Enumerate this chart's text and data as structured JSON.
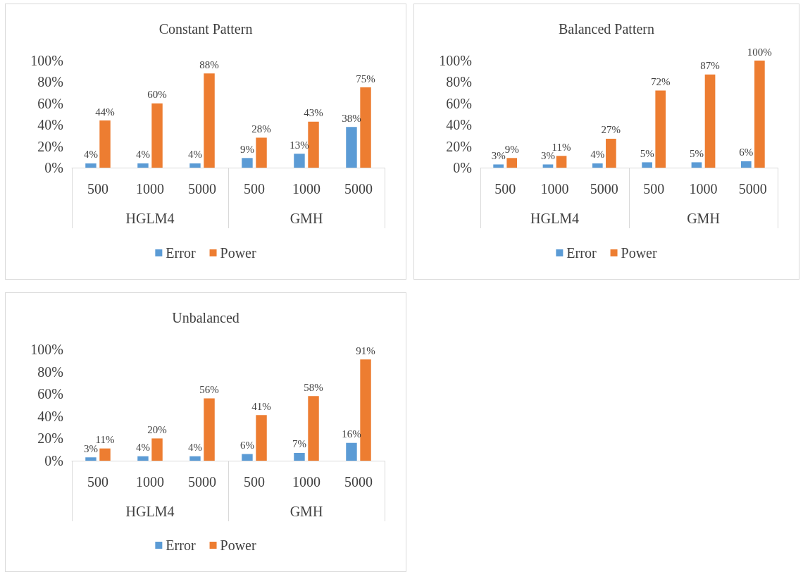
{
  "chart_data": [
    {
      "type": "bar",
      "title": "Constant Pattern",
      "categories": [
        "500",
        "1000",
        "5000",
        "500",
        "1000",
        "5000"
      ],
      "annotations": [
        "HGLM4",
        "GMH"
      ],
      "ylim": [
        0,
        100
      ],
      "yticks": [
        {
          "value": 0,
          "label": "0%"
        },
        {
          "value": 20,
          "label": "20%"
        },
        {
          "value": 40,
          "label": "40%"
        },
        {
          "value": 60,
          "label": "60%"
        },
        {
          "value": 80,
          "label": "80%"
        },
        {
          "value": 100,
          "label": "100%"
        }
      ],
      "grid": false,
      "legend": "bottom",
      "series": [
        {
          "name": "Error",
          "color": "#5b9bd5",
          "values": [
            4,
            4,
            4,
            9,
            13,
            38
          ],
          "value_labels": [
            "4%",
            "4%",
            "4%",
            "9%",
            "13%",
            "38%"
          ]
        },
        {
          "name": "Power",
          "color": "#ed7d31",
          "values": [
            44,
            60,
            88,
            28,
            43,
            75
          ],
          "value_labels": [
            "44%",
            "60%",
            "88%",
            "28%",
            "43%",
            "75%"
          ]
        }
      ]
    },
    {
      "type": "bar",
      "title": "Balanced Pattern",
      "categories": [
        "500",
        "1000",
        "5000",
        "500",
        "1000",
        "5000"
      ],
      "annotations": [
        "HGLM4",
        "GMH"
      ],
      "ylim": [
        0,
        100
      ],
      "yticks": [
        {
          "value": 0,
          "label": "0%"
        },
        {
          "value": 20,
          "label": "20%"
        },
        {
          "value": 40,
          "label": "40%"
        },
        {
          "value": 60,
          "label": "60%"
        },
        {
          "value": 80,
          "label": "80%"
        },
        {
          "value": 100,
          "label": "100%"
        }
      ],
      "grid": false,
      "legend": "bottom",
      "series": [
        {
          "name": "Error",
          "color": "#5b9bd5",
          "values": [
            3,
            3,
            4,
            5,
            5,
            6
          ],
          "value_labels": [
            "3%",
            "3%",
            "4%",
            "5%",
            "5%",
            "6%"
          ]
        },
        {
          "name": "Power",
          "color": "#ed7d31",
          "values": [
            9,
            11,
            27,
            72,
            87,
            100
          ],
          "value_labels": [
            "9%",
            "11%",
            "27%",
            "72%",
            "87%",
            "100%"
          ]
        }
      ]
    },
    {
      "type": "bar",
      "title": "Unbalanced",
      "categories": [
        "500",
        "1000",
        "5000",
        "500",
        "1000",
        "5000"
      ],
      "annotations": [
        "HGLM4",
        "GMH"
      ],
      "ylim": [
        0,
        100
      ],
      "yticks": [
        {
          "value": 0,
          "label": "0%"
        },
        {
          "value": 20,
          "label": "20%"
        },
        {
          "value": 40,
          "label": "40%"
        },
        {
          "value": 60,
          "label": "60%"
        },
        {
          "value": 80,
          "label": "80%"
        },
        {
          "value": 100,
          "label": "100%"
        }
      ],
      "grid": false,
      "legend": "bottom",
      "series": [
        {
          "name": "Error",
          "color": "#5b9bd5",
          "values": [
            3,
            4,
            4,
            6,
            7,
            16
          ],
          "value_labels": [
            "3%",
            "4%",
            "4%",
            "6%",
            "7%",
            "16%"
          ]
        },
        {
          "name": "Power",
          "color": "#ed7d31",
          "values": [
            11,
            20,
            56,
            41,
            58,
            91
          ],
          "value_labels": [
            "11%",
            "20%",
            "56%",
            "41%",
            "58%",
            "91%"
          ]
        }
      ]
    }
  ]
}
